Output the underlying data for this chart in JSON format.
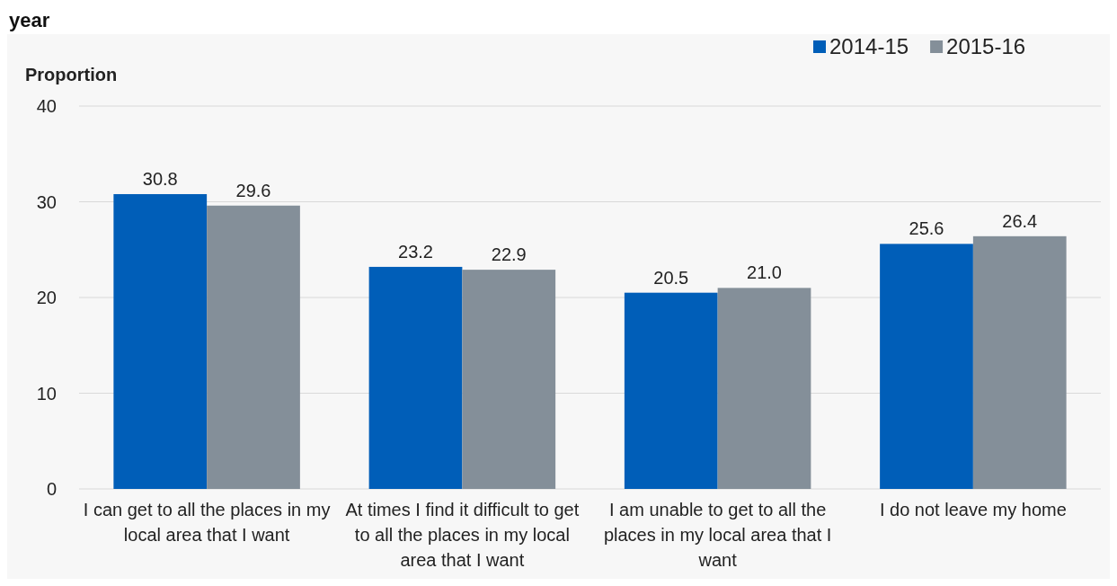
{
  "chart_data": {
    "type": "bar",
    "title": "year",
    "ylabel": "Proportion",
    "categories": [
      "I can get to all the places in my local area that I want",
      "At times I find it difficult to get to all the places in my local area that I want",
      "I am unable to get to all the places in my local area that I want",
      "I do not leave my home"
    ],
    "series": [
      {
        "name": "2014-15",
        "color": "#005eb8",
        "values": [
          30.8,
          23.2,
          20.5,
          25.6
        ],
        "value_labels": [
          "30.8",
          "23.2",
          "20.5",
          "25.6"
        ]
      },
      {
        "name": "2015-16",
        "color": "#848f99",
        "values": [
          29.6,
          22.9,
          21.0,
          26.4
        ],
        "value_labels": [
          "29.6",
          "22.9",
          "21.0",
          "26.4"
        ]
      }
    ],
    "ylim": [
      0,
      40
    ],
    "yticks": [
      0,
      10,
      20,
      30,
      40
    ],
    "grid": "y",
    "legend": "top right"
  }
}
